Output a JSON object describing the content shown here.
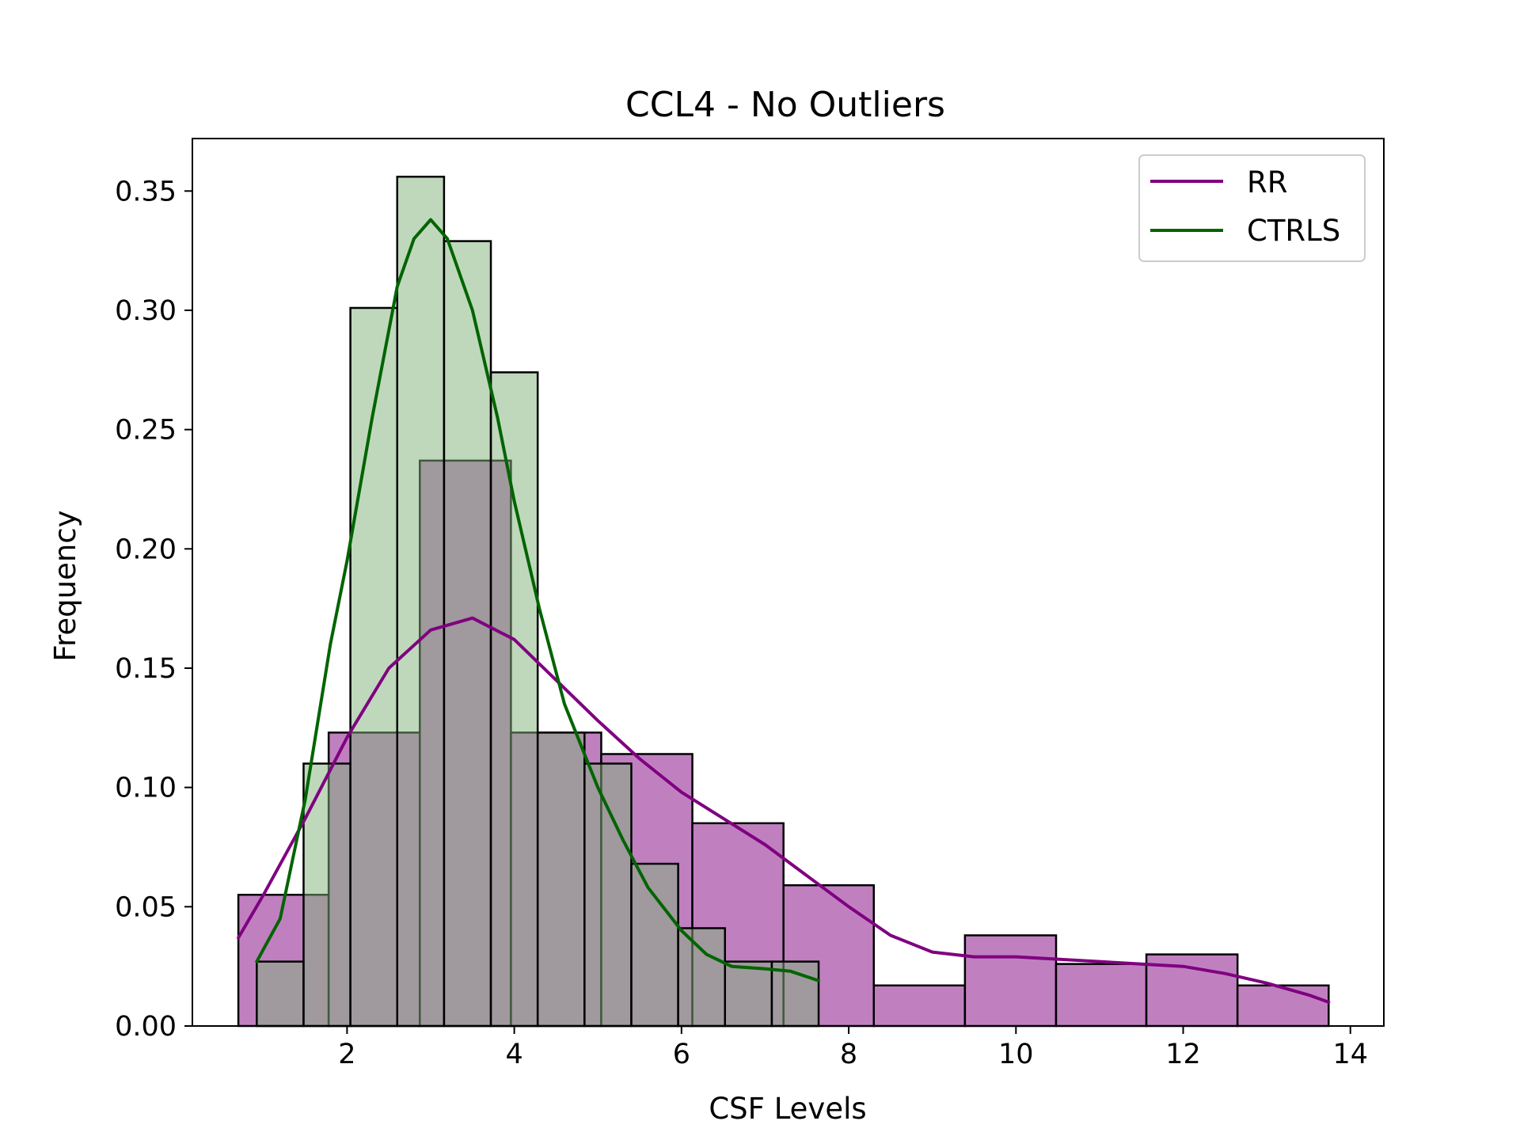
{
  "chart_data": {
    "type": "histogram",
    "title": "CCL4 - No Outliers",
    "xlabel": "CSF Levels",
    "ylabel": "Frequency",
    "xlim": [
      0.15,
      14.4
    ],
    "ylim": [
      0,
      0.372
    ],
    "xticks": [
      2,
      4,
      6,
      8,
      10,
      12,
      14
    ],
    "yticks": [
      0.0,
      0.05,
      0.1,
      0.15,
      0.2,
      0.25,
      0.3,
      0.35
    ],
    "ytick_labels": [
      "0.00",
      "0.05",
      "0.10",
      "0.15",
      "0.20",
      "0.25",
      "0.30",
      "0.35"
    ],
    "legend_position": "top-right",
    "series": [
      {
        "name": "RR",
        "color": "#800080",
        "bar_fill": "#c080c0",
        "bins": [
          {
            "x0": 0.7,
            "x1": 1.78,
            "value": 0.055
          },
          {
            "x0": 1.78,
            "x1": 2.87,
            "value": 0.123
          },
          {
            "x0": 2.87,
            "x1": 3.96,
            "value": 0.237
          },
          {
            "x0": 3.96,
            "x1": 5.04,
            "value": 0.123
          },
          {
            "x0": 5.04,
            "x1": 6.13,
            "value": 0.114
          },
          {
            "x0": 6.13,
            "x1": 7.22,
            "value": 0.085
          },
          {
            "x0": 7.22,
            "x1": 8.3,
            "value": 0.059
          },
          {
            "x0": 8.3,
            "x1": 9.39,
            "value": 0.017
          },
          {
            "x0": 9.39,
            "x1": 10.48,
            "value": 0.038
          },
          {
            "x0": 10.48,
            "x1": 11.56,
            "value": 0.026
          },
          {
            "x0": 11.56,
            "x1": 12.65,
            "value": 0.03
          },
          {
            "x0": 12.65,
            "x1": 13.74,
            "value": 0.017
          }
        ],
        "kde": [
          [
            0.7,
            0.037
          ],
          [
            1.0,
            0.055
          ],
          [
            1.5,
            0.087
          ],
          [
            2.0,
            0.121
          ],
          [
            2.5,
            0.15
          ],
          [
            3.0,
            0.166
          ],
          [
            3.5,
            0.171
          ],
          [
            4.0,
            0.162
          ],
          [
            4.5,
            0.145
          ],
          [
            5.0,
            0.128
          ],
          [
            5.5,
            0.112
          ],
          [
            6.0,
            0.098
          ],
          [
            6.5,
            0.087
          ],
          [
            7.0,
            0.076
          ],
          [
            7.5,
            0.063
          ],
          [
            8.0,
            0.05
          ],
          [
            8.5,
            0.038
          ],
          [
            9.0,
            0.031
          ],
          [
            9.5,
            0.029
          ],
          [
            10.0,
            0.029
          ],
          [
            10.5,
            0.028
          ],
          [
            11.0,
            0.027
          ],
          [
            11.5,
            0.026
          ],
          [
            12.0,
            0.025
          ],
          [
            12.5,
            0.022
          ],
          [
            13.0,
            0.018
          ],
          [
            13.5,
            0.013
          ],
          [
            13.74,
            0.01
          ]
        ]
      },
      {
        "name": "CTRLS",
        "color": "#006400",
        "bar_fill": "#80b27a",
        "bins": [
          {
            "x0": 0.92,
            "x1": 1.48,
            "value": 0.027
          },
          {
            "x0": 1.48,
            "x1": 2.04,
            "value": 0.11
          },
          {
            "x0": 2.04,
            "x1": 2.6,
            "value": 0.301
          },
          {
            "x0": 2.6,
            "x1": 3.16,
            "value": 0.356
          },
          {
            "x0": 3.16,
            "x1": 3.72,
            "value": 0.329
          },
          {
            "x0": 3.72,
            "x1": 4.28,
            "value": 0.274
          },
          {
            "x0": 4.28,
            "x1": 4.84,
            "value": 0.123
          },
          {
            "x0": 4.84,
            "x1": 5.4,
            "value": 0.11
          },
          {
            "x0": 5.4,
            "x1": 5.96,
            "value": 0.068
          },
          {
            "x0": 5.96,
            "x1": 6.52,
            "value": 0.041
          },
          {
            "x0": 6.52,
            "x1": 7.08,
            "value": 0.027
          },
          {
            "x0": 7.08,
            "x1": 7.64,
            "value": 0.027
          }
        ],
        "kde": [
          [
            0.92,
            0.027
          ],
          [
            1.2,
            0.045
          ],
          [
            1.5,
            0.095
          ],
          [
            1.8,
            0.16
          ],
          [
            2.0,
            0.195
          ],
          [
            2.3,
            0.255
          ],
          [
            2.6,
            0.31
          ],
          [
            2.8,
            0.33
          ],
          [
            3.0,
            0.338
          ],
          [
            3.2,
            0.33
          ],
          [
            3.5,
            0.3
          ],
          [
            3.8,
            0.255
          ],
          [
            4.0,
            0.22
          ],
          [
            4.3,
            0.175
          ],
          [
            4.6,
            0.135
          ],
          [
            5.0,
            0.1
          ],
          [
            5.3,
            0.078
          ],
          [
            5.6,
            0.058
          ],
          [
            6.0,
            0.04
          ],
          [
            6.3,
            0.03
          ],
          [
            6.6,
            0.025
          ],
          [
            7.0,
            0.024
          ],
          [
            7.3,
            0.023
          ],
          [
            7.64,
            0.019
          ]
        ]
      }
    ]
  }
}
